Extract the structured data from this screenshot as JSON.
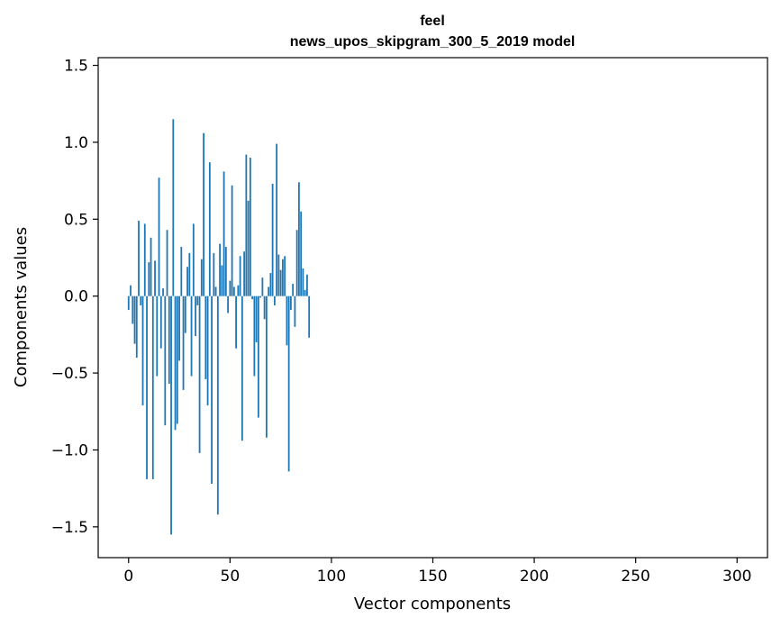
{
  "chart_data": {
    "type": "bar",
    "title": {
      "line1": "feel",
      "line2": "news_upos_skipgram_300_5_2019 model"
    },
    "xlabel": "Vector components",
    "ylabel": "Components values",
    "xlim": [
      -15,
      315
    ],
    "ylim": [
      -1.7,
      1.55
    ],
    "xticks": [
      0,
      50,
      100,
      150,
      200,
      250,
      300
    ],
    "xtick_labels": [
      "0",
      "50",
      "100",
      "150",
      "200",
      "250",
      "300"
    ],
    "yticks": [
      -1.5,
      -1.0,
      -0.5,
      0.0,
      0.5,
      1.0,
      1.5
    ],
    "ytick_labels": [
      "−1.5",
      "−1.0",
      "−0.5",
      "0.0",
      "0.5",
      "1.0",
      "1.5"
    ],
    "grid": false,
    "bar_color": "#1f77b4",
    "bar_width": 0.8,
    "series": [
      {
        "name": "feel",
        "values": [
          -0.09,
          0.07,
          -0.18,
          -0.31,
          -0.4,
          0.49,
          -0.06,
          -0.71,
          0.47,
          -1.19,
          0.22,
          0.38,
          -1.19,
          0.23,
          -0.52,
          0.77,
          -0.34,
          0.05,
          -0.84,
          0.43,
          -0.57,
          -1.55,
          1.15,
          -0.87,
          -0.83,
          -0.42,
          0.32,
          -0.61,
          -0.24,
          0.19,
          0.28,
          -0.52,
          0.47,
          -0.26,
          -0.06,
          -1.02,
          0.24,
          1.06,
          -0.54,
          -0.71,
          0.87,
          -1.22,
          0.28,
          0.06,
          -1.42,
          0.34,
          0.2,
          0.81,
          0.32,
          -0.11,
          0.1,
          0.72,
          0.06,
          -0.34,
          0.07,
          0.26,
          -0.94,
          0.29,
          0.92,
          0.62,
          0.9,
          -0.02,
          -0.52,
          -0.3,
          -0.79,
          -0.01,
          0.12,
          -0.15,
          -0.92,
          0.06,
          0.15,
          0.73,
          -0.06,
          0.99,
          0.27,
          0.17,
          0.24,
          0.26,
          -0.32,
          -1.14,
          -0.09,
          0.08,
          -0.2,
          0.43,
          0.74,
          0.55,
          0.18,
          0.04,
          0.14,
          -0.27
        ]
      }
    ]
  }
}
